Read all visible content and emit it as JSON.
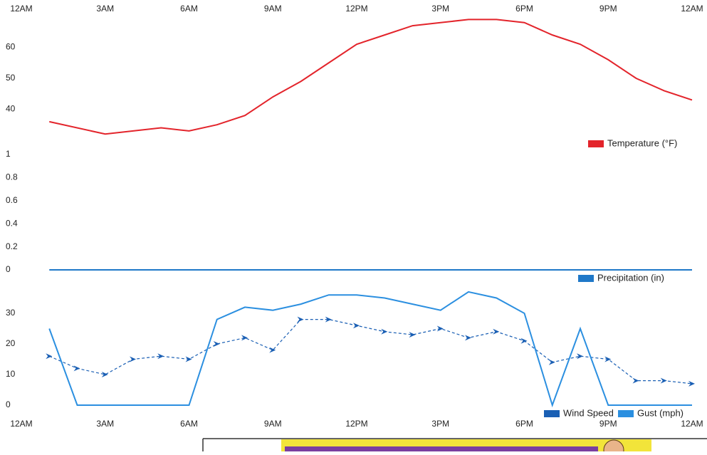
{
  "chart_data": [
    {
      "type": "line",
      "xlim": [
        0,
        24
      ],
      "xticks": [
        {
          "value": 0,
          "label": "12AM"
        },
        {
          "value": 3,
          "label": "3AM"
        },
        {
          "value": 6,
          "label": "6AM"
        },
        {
          "value": 9,
          "label": "9AM"
        },
        {
          "value": 12,
          "label": "12PM"
        },
        {
          "value": 15,
          "label": "3PM"
        },
        {
          "value": 18,
          "label": "6PM"
        },
        {
          "value": 21,
          "label": "9PM"
        },
        {
          "value": 24,
          "label": "12AM"
        }
      ],
      "ylim": [
        27,
        73
      ],
      "yticks": [
        40,
        50,
        60
      ],
      "legend": "bottom-right",
      "series": [
        {
          "name": "Temperature (°F)",
          "color": "#e3242b",
          "x": [
            1,
            3,
            5,
            6,
            7,
            8,
            9,
            10,
            11,
            12,
            13,
            14,
            15,
            16,
            17,
            18,
            19,
            20,
            21,
            22,
            23,
            24
          ],
          "values": [
            36,
            32,
            34,
            33,
            35,
            38,
            44,
            49,
            55,
            61,
            64,
            67,
            68,
            69,
            69,
            68,
            64,
            61,
            56,
            50,
            46,
            43
          ]
        }
      ]
    },
    {
      "type": "line",
      "xlim": [
        0,
        24
      ],
      "ylim": [
        0,
        1
      ],
      "yticks": [
        0,
        0.2,
        0.4,
        0.6,
        0.8,
        1
      ],
      "legend": "bottom-right",
      "series": [
        {
          "name": "Precipitation (in)",
          "color": "#1f78c8",
          "x": [
            1,
            2,
            3,
            4,
            5,
            6,
            7,
            8,
            9,
            10,
            11,
            12,
            13,
            14,
            15,
            16,
            17,
            18,
            19,
            20,
            21,
            22,
            23,
            24
          ],
          "values": [
            0,
            0,
            0,
            0,
            0,
            0,
            0,
            0,
            0,
            0,
            0,
            0,
            0,
            0,
            0,
            0,
            0,
            0,
            0,
            0,
            0,
            0,
            0,
            0
          ]
        }
      ]
    },
    {
      "type": "line",
      "xlim": [
        0,
        24
      ],
      "xticks": [
        {
          "value": 0,
          "label": "12AM"
        },
        {
          "value": 3,
          "label": "3AM"
        },
        {
          "value": 6,
          "label": "6AM"
        },
        {
          "value": 9,
          "label": "9AM"
        },
        {
          "value": 12,
          "label": "12PM"
        },
        {
          "value": 15,
          "label": "3PM"
        },
        {
          "value": 18,
          "label": "6PM"
        },
        {
          "value": 21,
          "label": "9PM"
        },
        {
          "value": 24,
          "label": "12AM"
        }
      ],
      "ylim": [
        0,
        40
      ],
      "yticks": [
        0,
        10,
        20,
        30
      ],
      "legend": "bottom-right",
      "series": [
        {
          "name": "Wind Speed",
          "color": "#1a5fb4",
          "dashed": true,
          "x": [
            1,
            2,
            3,
            4,
            5,
            6,
            7,
            8,
            9,
            10,
            11,
            12,
            13,
            14,
            15,
            16,
            17,
            18,
            19,
            20,
            21,
            22,
            23,
            24
          ],
          "values": [
            16,
            12,
            10,
            15,
            16,
            15,
            20,
            22,
            18,
            28,
            28,
            26,
            24,
            23,
            25,
            22,
            24,
            21,
            14,
            16,
            15,
            8,
            8,
            7
          ]
        },
        {
          "name": "Gust (mph)",
          "color": "#2b8fe0",
          "x": [
            1,
            2,
            6,
            7,
            8,
            9,
            10,
            11,
            12,
            13,
            14,
            15,
            16,
            17,
            18,
            19,
            20,
            21,
            24
          ],
          "values": [
            25,
            0,
            0,
            28,
            32,
            31,
            33,
            36,
            36,
            35,
            33,
            31,
            37,
            35,
            30,
            0,
            25,
            0,
            0
          ]
        }
      ]
    }
  ]
}
